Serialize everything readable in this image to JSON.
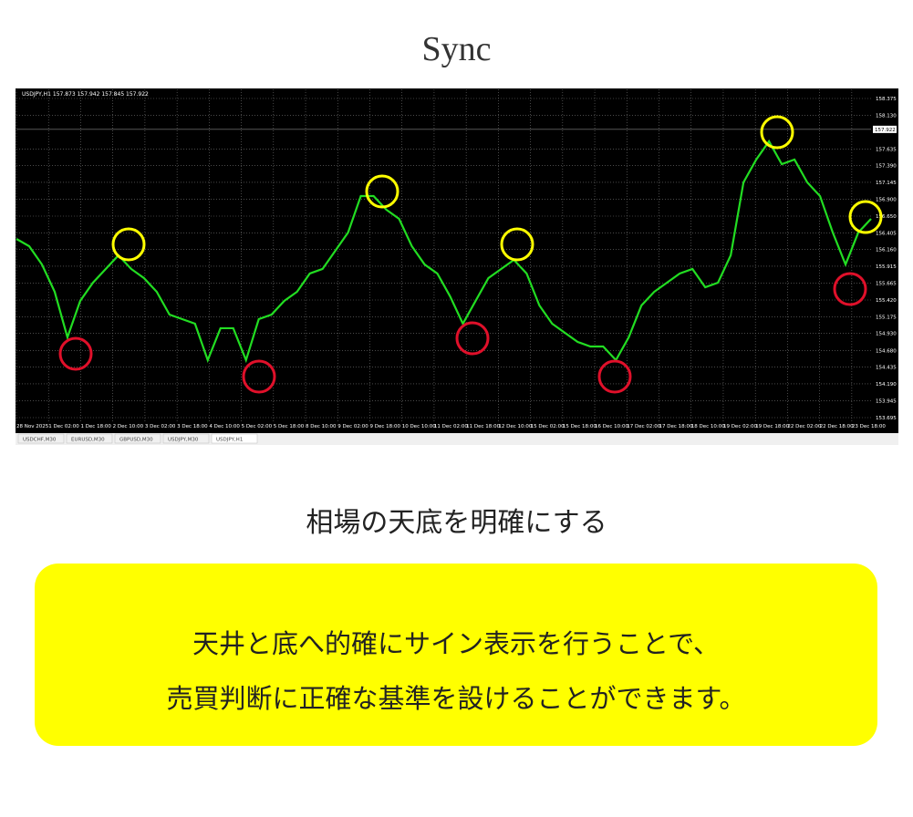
{
  "title": "Sync",
  "chart": {
    "header": "USDJPY,H1 157.873 157.942 157.845 157.922",
    "current_price": {
      "value": 157.922,
      "label": "157.922"
    },
    "ylim": [
      153.695,
      158.375
    ],
    "yticks": [
      {
        "value": 158.375,
        "label": "158.375"
      },
      {
        "value": 158.13,
        "label": "158.130"
      },
      {
        "value": 157.635,
        "label": "157.635"
      },
      {
        "value": 157.39,
        "label": "157.390"
      },
      157.145,
      {
        "value": 156.9,
        "label": "156.900"
      },
      {
        "value": 156.65,
        "label": "156.650"
      },
      156.405,
      {
        "value": 156.16,
        "label": "156.160"
      },
      155.915,
      155.665,
      {
        "value": 155.42,
        "label": "155.420"
      },
      155.175,
      {
        "value": 154.93,
        "label": "154.930"
      },
      {
        "value": 154.68,
        "label": "154.680"
      },
      154.435,
      {
        "value": 154.19,
        "label": "154.190"
      },
      153.945,
      153.695
    ],
    "x_labels": [
      "28 Nov 2025",
      "1 Dec 02:00",
      "1 Dec 18:00",
      "2 Dec 10:00",
      "3 Dec 02:00",
      "3 Dec 18:00",
      "4 Dec 10:00",
      "5 Dec 02:00",
      "5 Dec 18:00",
      "8 Dec 10:00",
      "9 Dec 02:00",
      "9 Dec 18:00",
      "10 Dec 10:00",
      "11 Dec 02:00",
      "11 Dec 18:00",
      "12 Dec 10:00",
      "15 Dec 02:00",
      "15 Dec 18:00",
      "16 Dec 10:00",
      "17 Dec 02:00",
      "17 Dec 18:00",
      "18 Dec 10:00",
      "19 Dec 02:00",
      "19 Dec 18:00",
      "22 Dec 02:00",
      "22 Dec 18:00",
      "23 Dec 18:00"
    ],
    "values": [
      156.316,
      156.209,
      155.941,
      155.54,
      154.872,
      155.407,
      155.674,
      155.875,
      156.075,
      155.875,
      155.741,
      155.54,
      155.206,
      155.139,
      155.072,
      154.538,
      155.006,
      155.006,
      154.538,
      155.139,
      155.206,
      155.407,
      155.54,
      155.808,
      155.875,
      156.142,
      156.409,
      156.944,
      156.944,
      156.744,
      156.61,
      156.209,
      155.941,
      155.808,
      155.473,
      155.072,
      155.407,
      155.741,
      155.875,
      156.008,
      155.808,
      155.34,
      155.072,
      154.939,
      154.805,
      154.738,
      154.738,
      154.538,
      154.872,
      155.34,
      155.54,
      155.674,
      155.808,
      155.875,
      155.607,
      155.674,
      156.075,
      157.145,
      157.479,
      157.747,
      157.412,
      157.479,
      157.145,
      156.944,
      156.409,
      155.941,
      156.409,
      156.61
    ],
    "tabs": [
      "USDCHF,M30",
      "EURUSD,M30",
      "GBPUSD,M30",
      "USDJPY,M30",
      "USDJPY,H1"
    ]
  },
  "subtitle": "相場の天底を明確にする",
  "body": [
    "天井と底へ的確にサイン表示を行うことで、",
    "売買判断に正確な基準を設けることができます。"
  ]
}
